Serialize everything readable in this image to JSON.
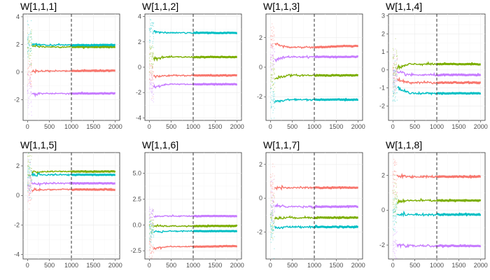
{
  "figure": {
    "type": "trace-plot-grid",
    "colors": {
      "series1": "#F8766D",
      "series2": "#7CAE00",
      "series3": "#00BFC4",
      "series4": "#C77CFF"
    }
  },
  "chart_data": [
    {
      "type": "line",
      "title": "W[1,1,1]",
      "xlim": [
        -100,
        2100
      ],
      "ylim": [
        -3.5,
        4.2
      ],
      "xticks": [
        0,
        500,
        1000,
        1500,
        2000
      ],
      "xtick_labels": [
        "0",
        "500",
        "1000",
        "1500",
        "2000"
      ],
      "yticks": [
        -2,
        0,
        2,
        4
      ],
      "ytick_labels": [
        "-2",
        "0",
        "2",
        "4"
      ],
      "vline": 1000,
      "series": [
        {
          "color": "#F8766D",
          "start": 0.05,
          "mid": 0.08,
          "end": 0.1
        },
        {
          "color": "#7CAE00",
          "start": 1.9,
          "mid": 1.82,
          "end": 1.82
        },
        {
          "color": "#00BFC4",
          "start": 2.05,
          "mid": 1.95,
          "end": 1.95
        },
        {
          "color": "#C77CFF",
          "start": -1.6,
          "mid": -1.55,
          "end": -1.55
        }
      ]
    },
    {
      "type": "line",
      "title": "W[1,1,2]",
      "xlim": [
        -100,
        2100
      ],
      "ylim": [
        -4.2,
        4.2
      ],
      "xticks": [
        0,
        500,
        1000,
        1500,
        2000
      ],
      "xtick_labels": [
        "0",
        "500",
        "1000",
        "1500",
        "2000"
      ],
      "yticks": [
        -4,
        -2,
        0,
        2,
        4
      ],
      "ytick_labels": [
        "-4",
        "-2",
        "0",
        "2",
        "4"
      ],
      "vline": 1000,
      "series": [
        {
          "color": "#F8766D",
          "start": -0.75,
          "mid": -0.65,
          "end": -0.65
        },
        {
          "color": "#7CAE00",
          "start": 0.7,
          "mid": 0.8,
          "end": 0.8
        },
        {
          "color": "#00BFC4",
          "start": 2.8,
          "mid": 2.72,
          "end": 2.7
        },
        {
          "color": "#C77CFF",
          "start": -1.55,
          "mid": -1.35,
          "end": -1.35
        }
      ]
    },
    {
      "type": "line",
      "title": "W[1,1,3]",
      "xlim": [
        -100,
        2100
      ],
      "ylim": [
        -3.6,
        3.6
      ],
      "xticks": [
        0,
        500,
        1000,
        1500,
        2000
      ],
      "xtick_labels": [
        "0",
        "500",
        "1000",
        "1500",
        "2000"
      ],
      "yticks": [
        -2,
        0,
        2
      ],
      "ytick_labels": [
        "-2",
        "0",
        "2"
      ],
      "vline": 1000,
      "series": [
        {
          "color": "#F8766D",
          "start": 1.6,
          "mid": 1.35,
          "end": 1.45
        },
        {
          "color": "#7CAE00",
          "start": -0.75,
          "mid": -0.55,
          "end": -0.55
        },
        {
          "color": "#00BFC4",
          "start": -2.35,
          "mid": -2.2,
          "end": -2.2
        },
        {
          "color": "#C77CFF",
          "start": 0.5,
          "mid": 0.7,
          "end": 0.7
        }
      ]
    },
    {
      "type": "line",
      "title": "W[1,1,4]",
      "xlim": [
        -100,
        2100
      ],
      "ylim": [
        -2.8,
        3.1
      ],
      "xticks": [
        0,
        500,
        1000,
        1500,
        2000
      ],
      "xtick_labels": [
        "0",
        "500",
        "1000",
        "1500",
        "2000"
      ],
      "yticks": [
        -2,
        -1,
        0,
        1,
        2,
        3
      ],
      "ytick_labels": [
        "-2",
        "-1",
        "0",
        "1",
        "2",
        "3"
      ],
      "vline": 1000,
      "series": [
        {
          "color": "#F8766D",
          "start": -0.55,
          "mid": -0.7,
          "end": -0.7
        },
        {
          "color": "#7CAE00",
          "start": 0.1,
          "mid": 0.32,
          "end": 0.32
        },
        {
          "color": "#00BFC4",
          "start": -1.0,
          "mid": -1.3,
          "end": -1.3
        },
        {
          "color": "#C77CFF",
          "start": -0.15,
          "mid": -0.28,
          "end": -0.28
        }
      ]
    },
    {
      "type": "line",
      "title": "W[1,1,5]",
      "xlim": [
        -100,
        2100
      ],
      "ylim": [
        -4.3,
        2.9
      ],
      "xticks": [
        0,
        500,
        1000,
        1500,
        2000
      ],
      "xtick_labels": [
        "0",
        "500",
        "1000",
        "1500",
        "2000"
      ],
      "yticks": [
        -4,
        -2,
        0,
        2
      ],
      "ytick_labels": [
        "-4",
        "-2",
        "0",
        "2"
      ],
      "vline": 1000,
      "series": [
        {
          "color": "#F8766D",
          "start": 0.35,
          "mid": 0.4,
          "end": 0.4
        },
        {
          "color": "#7CAE00",
          "start": 1.6,
          "mid": 1.62,
          "end": 1.62
        },
        {
          "color": "#00BFC4",
          "start": 1.4,
          "mid": 1.4,
          "end": 1.4
        },
        {
          "color": "#C77CFF",
          "start": 0.8,
          "mid": 0.82,
          "end": 0.82
        }
      ]
    },
    {
      "type": "line",
      "title": "W[1,1,6]",
      "xlim": [
        -100,
        2100
      ],
      "ylim": [
        -3.3,
        7.0
      ],
      "xticks": [
        0,
        500,
        1000,
        1500,
        2000
      ],
      "xtick_labels": [
        "0",
        "500",
        "1000",
        "1500",
        "2000"
      ],
      "yticks": [
        -2.5,
        0,
        2.5,
        5
      ],
      "ytick_labels": [
        "-2.5",
        "0.0",
        "2.5",
        "5.0"
      ],
      "vline": 1000,
      "series": [
        {
          "color": "#F8766D",
          "start": -2.3,
          "mid": -2.1,
          "end": -2.05
        },
        {
          "color": "#7CAE00",
          "start": -0.1,
          "mid": -0.12,
          "end": -0.1
        },
        {
          "color": "#00BFC4",
          "start": -0.65,
          "mid": -0.6,
          "end": -0.6
        },
        {
          "color": "#C77CFF",
          "start": 0.8,
          "mid": 0.85,
          "end": 0.85
        }
      ]
    },
    {
      "type": "line",
      "title": "W[1,1,7]",
      "xlim": [
        -100,
        2100
      ],
      "ylim": [
        -3.6,
        2.7
      ],
      "xticks": [
        0,
        500,
        1000,
        1500,
        2000
      ],
      "xtick_labels": [
        "0",
        "500",
        "1000",
        "1500",
        "2000"
      ],
      "yticks": [
        -2,
        0,
        2
      ],
      "ytick_labels": [
        "-2",
        "0",
        "2"
      ],
      "vline": 1000,
      "series": [
        {
          "color": "#F8766D",
          "start": 0.6,
          "mid": 0.62,
          "end": 0.62
        },
        {
          "color": "#7CAE00",
          "start": -1.2,
          "mid": -1.15,
          "end": -1.15
        },
        {
          "color": "#00BFC4",
          "start": -1.75,
          "mid": -1.7,
          "end": -1.7
        },
        {
          "color": "#C77CFF",
          "start": -0.45,
          "mid": -0.5,
          "end": -0.5
        }
      ]
    },
    {
      "type": "line",
      "title": "W[1,1,8]",
      "xlim": [
        -100,
        2100
      ],
      "ylim": [
        -2.8,
        3.3
      ],
      "xticks": [
        0,
        500,
        1000,
        1500,
        2000
      ],
      "xtick_labels": [
        "0",
        "500",
        "1000",
        "1500",
        "2000"
      ],
      "yticks": [
        -2,
        0,
        2
      ],
      "ytick_labels": [
        "-2",
        "0",
        "2"
      ],
      "vline": 1000,
      "series": [
        {
          "color": "#F8766D",
          "start": 1.95,
          "mid": 1.92,
          "end": 1.92
        },
        {
          "color": "#7CAE00",
          "start": 0.5,
          "mid": 0.55,
          "end": 0.55
        },
        {
          "color": "#00BFC4",
          "start": -0.25,
          "mid": -0.25,
          "end": -0.25
        },
        {
          "color": "#C77CFF",
          "start": -2.0,
          "mid": -2.05,
          "end": -2.05
        }
      ]
    }
  ]
}
